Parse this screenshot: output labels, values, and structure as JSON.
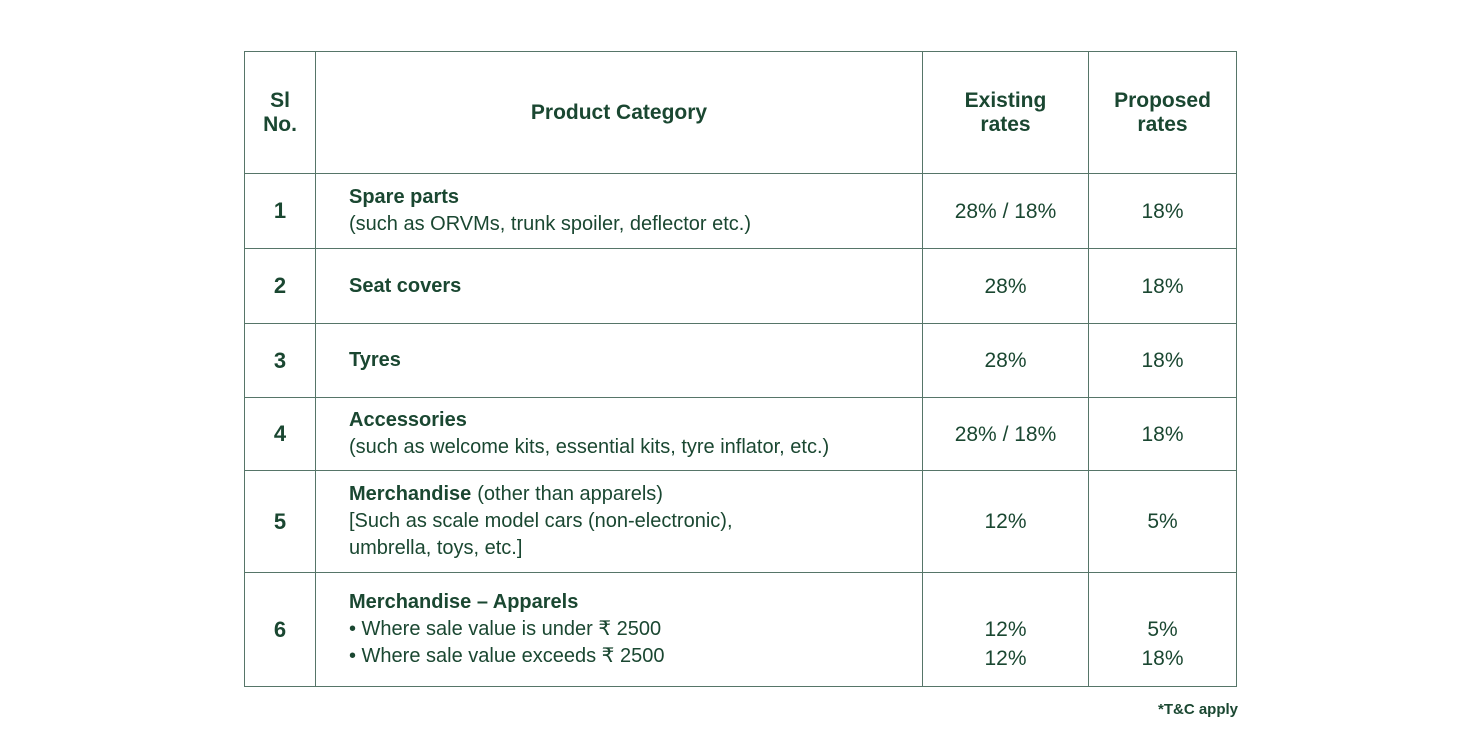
{
  "colors": {
    "text": "#1a4731",
    "border": "#567568",
    "background": "#ffffff"
  },
  "table": {
    "header": {
      "sl_no_line1": "Sl",
      "sl_no_line2": "No.",
      "product_category": "Product Category",
      "existing_line1": "Existing",
      "existing_line2": "rates",
      "proposed_line1": "Proposed",
      "proposed_line2": "rates"
    },
    "rows": [
      {
        "no": "1",
        "title": "Spare parts",
        "desc": "(such as ORVMs, trunk spoiler, deflector etc.)",
        "existing": "28% / 18%",
        "proposed": "18%"
      },
      {
        "no": "2",
        "title": "Seat covers",
        "existing": "28%",
        "proposed": "18%"
      },
      {
        "no": "3",
        "title": "Tyres",
        "existing": "28%",
        "proposed": "18%"
      },
      {
        "no": "4",
        "title": "Accessories",
        "desc": "(such as welcome kits, essential kits, tyre inflator, etc.)",
        "existing": "28% / 18%",
        "proposed": "18%"
      },
      {
        "no": "5",
        "title": "Merchandise",
        "title_suffix": "(other than apparels)",
        "desc_lines": [
          "[Such as scale model cars (non-electronic),",
          "umbrella, toys, etc.]"
        ],
        "existing": "12%",
        "proposed": "5%"
      },
      {
        "no": "6",
        "title": "Merchandise – Apparels",
        "bullets": [
          "• Where sale value is under ₹ 2500",
          "• Where sale value exceeds ₹ 2500"
        ],
        "existing_lines": [
          "12%",
          "12%"
        ],
        "proposed_lines": [
          "5%",
          "18%"
        ]
      }
    ]
  },
  "footer": {
    "note": "*T&C apply"
  },
  "chart_data": {
    "type": "table",
    "title": "GST existing vs proposed rates by product category",
    "columns": [
      "Sl No.",
      "Product Category",
      "Existing rates",
      "Proposed rates"
    ],
    "rows": [
      [
        "1",
        "Spare parts (such as ORVMs, trunk spoiler, deflector etc.)",
        "28% / 18%",
        "18%"
      ],
      [
        "2",
        "Seat covers",
        "28%",
        "18%"
      ],
      [
        "3",
        "Tyres",
        "28%",
        "18%"
      ],
      [
        "4",
        "Accessories (such as welcome kits, essential kits, tyre inflator, etc.)",
        "28% / 18%",
        "18%"
      ],
      [
        "5",
        "Merchandise (other than apparels) [Such as scale model cars (non-electronic), umbrella, toys, etc.]",
        "12%",
        "5%"
      ],
      [
        "6",
        "Merchandise – Apparels • Where sale value is under ₹ 2500",
        "12%",
        "5%"
      ],
      [
        "6",
        "Merchandise – Apparels • Where sale value exceeds ₹ 2500",
        "12%",
        "18%"
      ]
    ],
    "note": "*T&C apply"
  }
}
